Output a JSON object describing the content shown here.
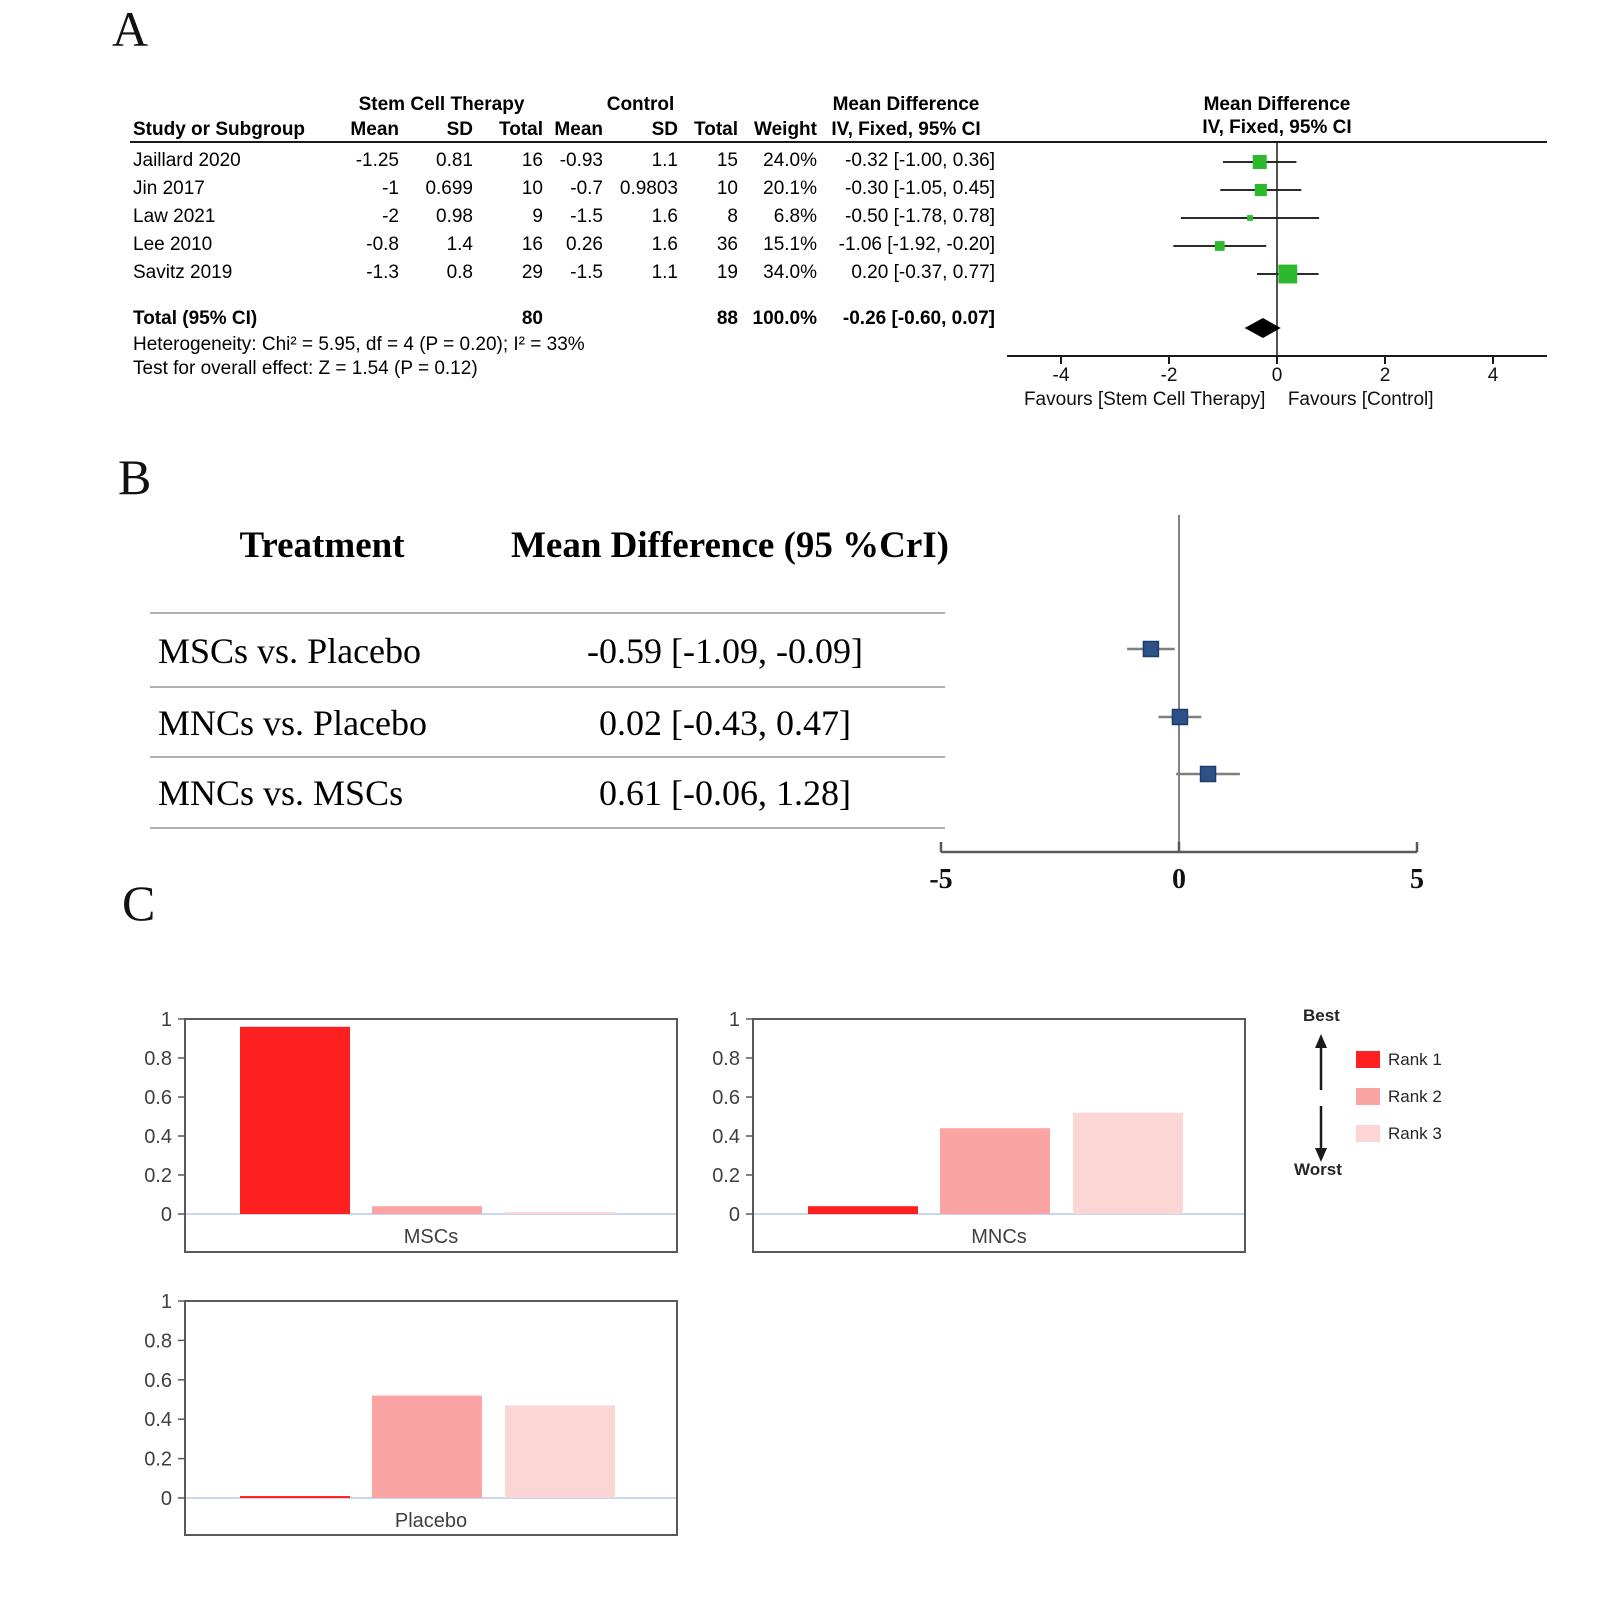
{
  "panels": {
    "a_label": "A",
    "b_label": "B",
    "c_label": "C"
  },
  "panelA": {
    "group_headers": {
      "therapy": "Stem Cell Therapy",
      "control": "Control",
      "mean_diff": "Mean Difference"
    },
    "plot_headers": {
      "line1": "Mean Difference",
      "line2": "IV, Fixed, 95% CI"
    },
    "columns": {
      "study": "Study or Subgroup",
      "mean1": "Mean",
      "sd1": "SD",
      "total1": "Total",
      "mean2": "Mean",
      "sd2": "SD",
      "total2": "Total",
      "weight": "Weight",
      "ci": "IV, Fixed, 95% CI"
    },
    "rows": [
      {
        "study": "Jaillard 2020",
        "mean1": "-1.25",
        "sd1": "0.81",
        "total1": "16",
        "mean2": "-0.93",
        "sd2": "1.1",
        "total2": "15",
        "weight": "24.0%",
        "ci": "-0.32 [-1.00, 0.36]"
      },
      {
        "study": "Jin 2017",
        "mean1": "-1",
        "sd1": "0.699",
        "total1": "10",
        "mean2": "-0.7",
        "sd2": "0.9803",
        "total2": "10",
        "weight": "20.1%",
        "ci": "-0.30 [-1.05, 0.45]"
      },
      {
        "study": "Law 2021",
        "mean1": "-2",
        "sd1": "0.98",
        "total1": "9",
        "mean2": "-1.5",
        "sd2": "1.6",
        "total2": "8",
        "weight": "6.8%",
        "ci": "-0.50 [-1.78, 0.78]"
      },
      {
        "study": "Lee 2010",
        "mean1": "-0.8",
        "sd1": "1.4",
        "total1": "16",
        "mean2": "0.26",
        "sd2": "1.6",
        "total2": "36",
        "weight": "15.1%",
        "ci": "-1.06 [-1.92, -0.20]"
      },
      {
        "study": "Savitz 2019",
        "mean1": "-1.3",
        "sd1": "0.8",
        "total1": "29",
        "mean2": "-1.5",
        "sd2": "1.1",
        "total2": "19",
        "weight": "34.0%",
        "ci": "0.20 [-0.37, 0.77]"
      }
    ],
    "total_row": {
      "label": "Total (95% CI)",
      "total1": "80",
      "total2": "88",
      "weight": "100.0%",
      "ci": "-0.26 [-0.60, 0.07]"
    },
    "heterogeneity": "Heterogeneity: Chi² = 5.95, df = 4 (P = 0.20); I² = 33%",
    "overall_effect": "Test for overall effect: Z = 1.54 (P = 0.12)"
  },
  "panelB": {
    "headers": {
      "treatment": "Treatment",
      "mean_diff": "Mean Difference (95 %CrI)"
    },
    "rows": [
      {
        "treatment": "MSCs vs. Placebo",
        "value": "-0.59 [-1.09, -0.09]"
      },
      {
        "treatment": "MNCs vs. Placebo",
        "value": "0.02 [-0.43, 0.47]"
      },
      {
        "treatment": "MNCs vs. MSCs",
        "value": "0.61 [-0.06, 1.28]"
      }
    ]
  },
  "panelC": {
    "legend": {
      "best": "Best",
      "worst": "Worst",
      "ranks": [
        "Rank 1",
        "Rank 2",
        "Rank 3"
      ],
      "colors": [
        "#fe2020",
        "#fba4a4",
        "#fcd5d5"
      ]
    }
  },
  "chart_data": [
    {
      "id": "forest_A",
      "type": "forest",
      "title": "Mean Difference",
      "subtitle": "IV, Fixed, 95% CI",
      "xlim": [
        -5,
        5
      ],
      "ticks": [
        -4,
        -2,
        0,
        2,
        4
      ],
      "marker_color": "#2eb82e",
      "studies": [
        {
          "label": "Jaillard 2020",
          "est": -0.32,
          "lo": -1.0,
          "hi": 0.36,
          "weight": 24.0
        },
        {
          "label": "Jin 2017",
          "est": -0.3,
          "lo": -1.05,
          "hi": 0.45,
          "weight": 20.1
        },
        {
          "label": "Law 2021",
          "est": -0.5,
          "lo": -1.78,
          "hi": 0.78,
          "weight": 6.8
        },
        {
          "label": "Lee 2010",
          "est": -1.06,
          "lo": -1.92,
          "hi": -0.2,
          "weight": 15.1
        },
        {
          "label": "Savitz 2019",
          "est": 0.2,
          "lo": -0.37,
          "hi": 0.77,
          "weight": 34.0
        }
      ],
      "total": {
        "label": "Total (95% CI)",
        "est": -0.26,
        "lo": -0.6,
        "hi": 0.07
      },
      "xlabel_left": "Favours [Stem Cell Therapy]",
      "xlabel_right": "Favours [Control]"
    },
    {
      "id": "forest_B",
      "type": "forest",
      "xlim": [
        -5,
        5
      ],
      "ticks": [
        -5,
        0,
        5
      ],
      "marker_color": "#2d5186",
      "marker_border": "#1c3c6e",
      "studies": [
        {
          "label": "MSCs vs. Placebo",
          "est": -0.59,
          "lo": -1.09,
          "hi": -0.09
        },
        {
          "label": "MNCs vs. Placebo",
          "est": 0.02,
          "lo": -0.43,
          "hi": 0.47
        },
        {
          "label": "MNCs vs. MSCs",
          "est": 0.61,
          "lo": -0.06,
          "hi": 1.28
        }
      ]
    },
    {
      "id": "rank_MSCs",
      "type": "bar",
      "title": "MSCs",
      "categories": [
        "Rank 1",
        "Rank 2",
        "Rank 3"
      ],
      "values": [
        0.96,
        0.04,
        0.01
      ],
      "ylim": [
        0,
        1
      ],
      "yticks": [
        0,
        0.2,
        0.4,
        0.6,
        0.8,
        1
      ]
    },
    {
      "id": "rank_MNCs",
      "type": "bar",
      "title": "MNCs",
      "categories": [
        "Rank 1",
        "Rank 2",
        "Rank 3"
      ],
      "values": [
        0.04,
        0.44,
        0.52
      ],
      "ylim": [
        0,
        1
      ],
      "yticks": [
        0,
        0.2,
        0.4,
        0.6,
        0.8,
        1
      ]
    },
    {
      "id": "rank_Placebo",
      "type": "bar",
      "title": "Placebo",
      "categories": [
        "Rank 1",
        "Rank 2",
        "Rank 3"
      ],
      "values": [
        0.01,
        0.52,
        0.47
      ],
      "ylim": [
        0,
        1
      ],
      "yticks": [
        0,
        0.2,
        0.4,
        0.6,
        0.8,
        1
      ]
    }
  ]
}
